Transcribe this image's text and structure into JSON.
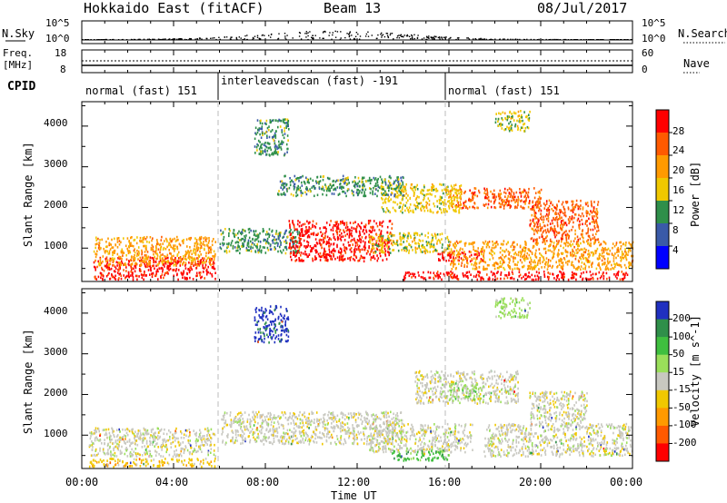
{
  "header": {
    "radar_title": "Hokkaido East (fitACF)",
    "beam_label": "Beam 13",
    "date": "08/Jul/2017"
  },
  "top_panels": {
    "nsky": {
      "label": "N.Sky",
      "left_ticks": [
        "10^5",
        "10^0"
      ],
      "right_ticks": [
        "10^5",
        "10^0"
      ],
      "right_label": "N.Search"
    },
    "freq": {
      "label_line1": "Freq.",
      "label_line2": "[MHz]",
      "left_ticks": [
        "18",
        "8"
      ],
      "right_ticks": [
        "60",
        "0"
      ],
      "right_label": "Nave"
    },
    "cpid": {
      "label": "CPID",
      "segments": [
        {
          "label": "normal (fast) 151",
          "start_h": 0,
          "end_h": 6
        },
        {
          "label": "interleavedscan (fast) -191",
          "start_h": 6,
          "end_h": 16
        },
        {
          "label": "normal (fast) 151",
          "start_h": 16,
          "end_h": 24
        }
      ]
    }
  },
  "chart_data": [
    {
      "type": "heatmap",
      "name": "power",
      "ylabel": "Slant Range [km]",
      "yticks": [
        1000,
        2000,
        3000,
        4000
      ],
      "ylim": [
        180,
        4600
      ],
      "xlim": [
        0,
        24
      ],
      "colorbar": {
        "label": "Power [dB]",
        "ticks": [
          "28",
          "24",
          "20",
          "16",
          "12",
          "8",
          "4"
        ],
        "colors": [
          "#ff0000",
          "#ff5a00",
          "#ff9a00",
          "#f0c800",
          "#2f8f4a",
          "#3a5aa8",
          "#0000ff"
        ]
      },
      "regions": [
        {
          "x0": 0.5,
          "x1": 5.8,
          "y0": 250,
          "y1": 800,
          "level": 0
        },
        {
          "x0": 0.5,
          "x1": 5.8,
          "y0": 600,
          "y1": 1300,
          "level": 2
        },
        {
          "x0": 6.0,
          "x1": 9.5,
          "y0": 900,
          "y1": 1500,
          "level": 4
        },
        {
          "x0": 9.0,
          "x1": 13.5,
          "y0": 700,
          "y1": 1700,
          "level": 0
        },
        {
          "x0": 12.5,
          "x1": 16.0,
          "y0": 900,
          "y1": 1400,
          "level": 3
        },
        {
          "x0": 15.5,
          "x1": 17.5,
          "y0": 700,
          "y1": 950,
          "level": 0
        },
        {
          "x0": 14.0,
          "x1": 23.8,
          "y0": 250,
          "y1": 450,
          "level": 0
        },
        {
          "x0": 16.0,
          "x1": 24.0,
          "y0": 500,
          "y1": 1200,
          "level": 2
        },
        {
          "x0": 16.0,
          "x1": 20.0,
          "y0": 2000,
          "y1": 2500,
          "level": 1
        },
        {
          "x0": 19.5,
          "x1": 22.5,
          "y0": 1200,
          "y1": 2200,
          "level": 1
        },
        {
          "x0": 13.0,
          "x1": 16.5,
          "y0": 1900,
          "y1": 2600,
          "level": 3
        },
        {
          "x0": 8.5,
          "x1": 14.0,
          "y0": 2300,
          "y1": 2800,
          "level": 4
        },
        {
          "x0": 18.0,
          "x1": 19.5,
          "y0": 3900,
          "y1": 4400,
          "level": 3
        },
        {
          "x0": 7.5,
          "x1": 9.0,
          "y0": 3300,
          "y1": 4200,
          "level": 4
        }
      ]
    },
    {
      "type": "heatmap",
      "name": "velocity",
      "ylabel": "Slant Range [km]",
      "yticks": [
        1000,
        2000,
        3000,
        4000
      ],
      "ylim": [
        180,
        4600
      ],
      "xlim": [
        0,
        24
      ],
      "colorbar": {
        "label": "Velocity [m s^-1]",
        "ticks": [
          "200",
          "100",
          "50",
          "15",
          "-15",
          "-50",
          "-100",
          "-200"
        ],
        "colors": [
          "#2030c0",
          "#2f8f4a",
          "#3fbf3f",
          "#9adf5a",
          "#c8c8c0",
          "#f0c800",
          "#ff9a00",
          "#ff5a00",
          "#ff0000"
        ]
      },
      "regions": [
        {
          "x0": 0.3,
          "x1": 5.8,
          "y0": 500,
          "y1": 1200,
          "level": 4
        },
        {
          "x0": 0.3,
          "x1": 5.8,
          "y0": 250,
          "y1": 450,
          "level": 5
        },
        {
          "x0": 6.0,
          "x1": 14.0,
          "y0": 800,
          "y1": 1600,
          "level": 4
        },
        {
          "x0": 12.5,
          "x1": 17.0,
          "y0": 600,
          "y1": 1300,
          "level": 4
        },
        {
          "x0": 14.5,
          "x1": 19.0,
          "y0": 1800,
          "y1": 2600,
          "level": 4
        },
        {
          "x0": 17.5,
          "x1": 24.0,
          "y0": 500,
          "y1": 1300,
          "level": 4
        },
        {
          "x0": 19.5,
          "x1": 22.0,
          "y0": 1300,
          "y1": 2100,
          "level": 4
        },
        {
          "x0": 13.5,
          "x1": 16.0,
          "y0": 400,
          "y1": 650,
          "level": 2
        },
        {
          "x0": 16.0,
          "x1": 17.5,
          "y0": 1900,
          "y1": 2300,
          "level": 3
        },
        {
          "x0": 18.0,
          "x1": 19.5,
          "y0": 3900,
          "y1": 4400,
          "level": 3
        },
        {
          "x0": 7.5,
          "x1": 9.0,
          "y0": 3300,
          "y1": 4200,
          "level": 0
        }
      ]
    }
  ],
  "xaxis": {
    "ticks": [
      "00:00",
      "04:00",
      "08:00",
      "12:00",
      "16:00",
      "20:00",
      "00:00"
    ],
    "label": "Time UT"
  },
  "y_tick_labels": [
    "1000",
    "2000",
    "3000",
    "4000"
  ]
}
